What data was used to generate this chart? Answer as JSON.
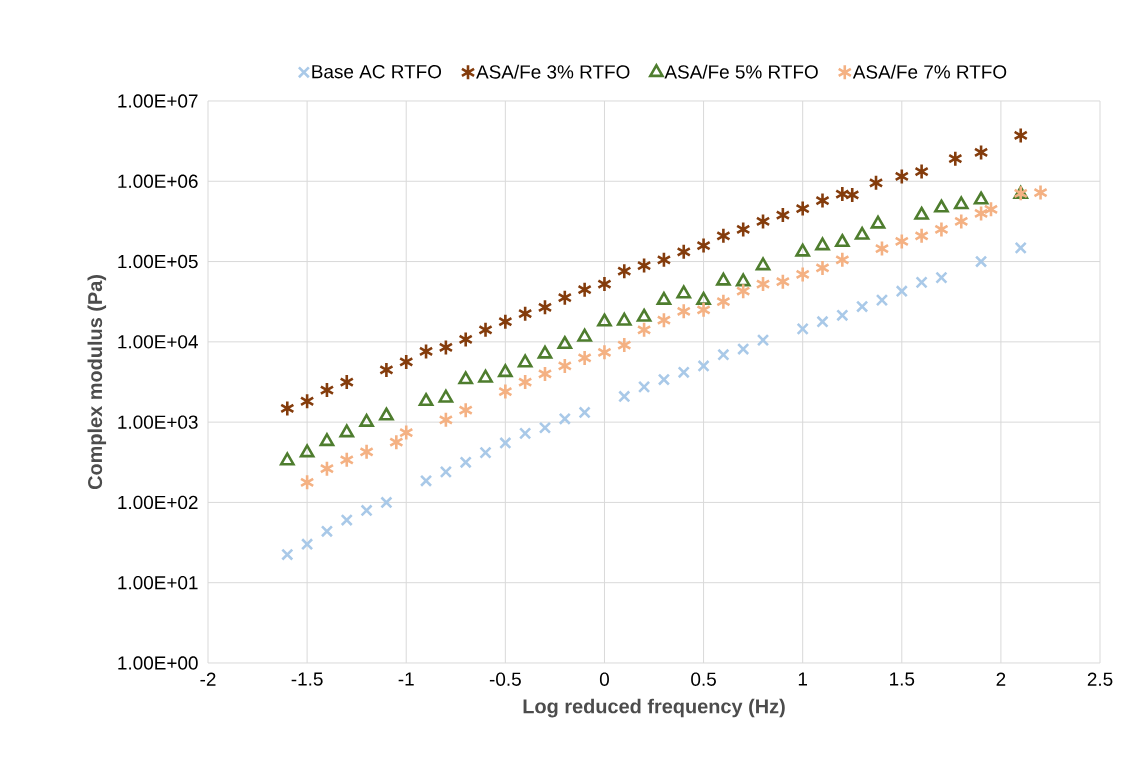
{
  "chart_data": {
    "type": "scatter",
    "xlabel": "Log reduced frequency (Hz)",
    "ylabel": "Complex modulus (Pa)",
    "log": "y",
    "grid": true,
    "legend": "top",
    "xlim": [
      -2,
      2.5
    ],
    "xticks": [
      -2,
      -1.5,
      -1,
      -0.5,
      0,
      0.5,
      1,
      1.5,
      2,
      2.5
    ],
    "ylim": [
      1,
      10000000
    ],
    "yticks": [
      {
        "value": 1,
        "label": "1.00E+00"
      },
      {
        "value": 10,
        "label": "1.00E+01"
      },
      {
        "value": 100,
        "label": "1.00E+02"
      },
      {
        "value": 1000,
        "label": "1.00E+03"
      },
      {
        "value": 10000,
        "label": "1.00E+04"
      },
      {
        "value": 100000,
        "label": "1.00E+05"
      },
      {
        "value": 1000000,
        "label": "1.00E+06"
      },
      {
        "value": 10000000,
        "label": "1.00E+07"
      }
    ],
    "series": [
      {
        "name": "Base AC RTFO",
        "color": "#a9c9e8",
        "marker": "cross",
        "x": [
          -1.6,
          -1.5,
          -1.4,
          -1.3,
          -1.2,
          -1.1,
          -0.9,
          -0.8,
          -0.7,
          -0.6,
          -0.5,
          -0.4,
          -0.3,
          -0.2,
          -0.1,
          0.1,
          0.2,
          0.3,
          0.4,
          0.5,
          0.6,
          0.7,
          0.8,
          1.0,
          1.1,
          1.2,
          1.3,
          1.4,
          1.5,
          1.6,
          1.7,
          1.9,
          2.1
        ],
        "values": [
          22.4,
          30.2,
          43.7,
          60.3,
          79.4,
          100,
          186,
          240,
          316,
          417,
          550,
          724,
          851,
          1100,
          1320,
          2090,
          2750,
          3390,
          4170,
          5010,
          6920,
          8130,
          10500,
          14500,
          17800,
          21400,
          27500,
          33100,
          42700,
          55000,
          63100,
          100000,
          148000
        ]
      },
      {
        "name": "ASA/Fe 3% RTFO",
        "color": "#843c0c",
        "x": [
          -1.6,
          -1.5,
          -1.4,
          -1.3,
          -1.1,
          -1.0,
          -0.9,
          -0.8,
          -0.7,
          -0.6,
          -0.5,
          -0.4,
          -0.3,
          -0.2,
          -0.1,
          0.0,
          0.1,
          0.2,
          0.3,
          0.4,
          0.5,
          0.6,
          0.7,
          0.8,
          0.9,
          1.0,
          1.1,
          1.2,
          1.25,
          1.37,
          1.5,
          1.6,
          1.77,
          1.9,
          2.1
        ],
        "values": [
          1480,
          1820,
          2510,
          3160,
          4470,
          5620,
          7590,
          8510,
          10700,
          14100,
          17800,
          22400,
          26900,
          35500,
          44700,
          52500,
          75900,
          89100,
          105000,
          132000,
          158000,
          209000,
          251000,
          316000,
          380000,
          457000,
          575000,
          692000,
          676000,
          955000,
          1150000,
          1320000,
          1910000,
          2290000,
          3720000
        ]
      },
      {
        "name": "ASA/Fe 5% RTFO",
        "color": "#4e7d2e",
        "marker": "triangle",
        "x": [
          -1.6,
          -1.5,
          -1.4,
          -1.3,
          -1.2,
          -1.1,
          -0.9,
          -0.8,
          -0.7,
          -0.6,
          -0.5,
          -0.4,
          -0.3,
          -0.2,
          -0.1,
          0.0,
          0.1,
          0.2,
          0.3,
          0.4,
          0.5,
          0.6,
          0.7,
          0.8,
          1.0,
          1.1,
          1.2,
          1.3,
          1.38,
          1.6,
          1.7,
          1.8,
          1.9,
          2.1
        ],
        "values": [
          331,
          417,
          575,
          741,
          1000,
          1200,
          1820,
          2000,
          3390,
          3550,
          4170,
          5500,
          7080,
          9330,
          11500,
          17800,
          18200,
          20400,
          33100,
          39800,
          33100,
          57500,
          56200,
          89100,
          132000,
          158000,
          174000,
          214000,
          295000,
          380000,
          468000,
          513000,
          589000,
          692000
        ]
      },
      {
        "name": "ASA/Fe 7% RTFO",
        "color": "#f4b183",
        "x": [
          -1.5,
          -1.4,
          -1.3,
          -1.2,
          -1.05,
          -1.0,
          -0.8,
          -0.7,
          -0.5,
          -0.4,
          -0.3,
          -0.2,
          -0.1,
          0.0,
          0.1,
          0.2,
          0.3,
          0.4,
          0.5,
          0.6,
          0.7,
          0.8,
          0.9,
          1.0,
          1.1,
          1.2,
          1.4,
          1.5,
          1.6,
          1.7,
          1.8,
          1.9,
          1.95,
          2.1,
          2.2
        ],
        "values": [
          178,
          263,
          339,
          427,
          562,
          741,
          1070,
          1410,
          2400,
          3160,
          3980,
          5010,
          6310,
          7410,
          9120,
          14100,
          18600,
          24000,
          25100,
          31600,
          42700,
          52500,
          56200,
          69200,
          83200,
          105000,
          145000,
          178000,
          209000,
          251000,
          316000,
          398000,
          447000,
          708000,
          724000
        ]
      }
    ]
  }
}
